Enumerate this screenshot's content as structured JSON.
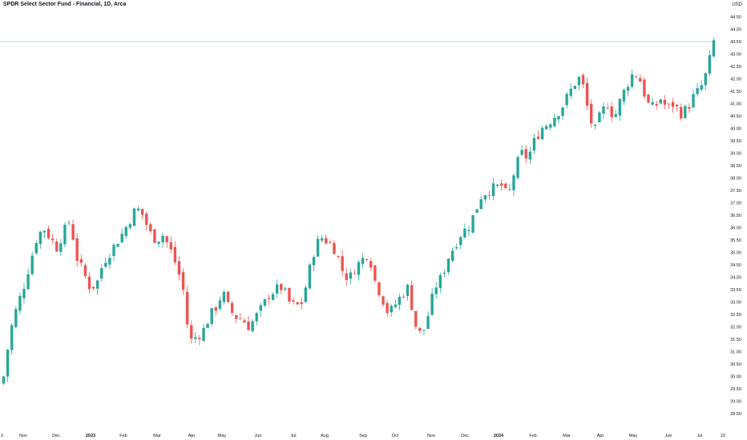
{
  "header": {
    "title": "SPDR Select Sector Fund - Financial, 1D, Arca",
    "currency": "USD"
  },
  "colors": {
    "up": "#26a69a",
    "down": "#ef5350",
    "price_line": "#26a69a",
    "axis_text": "#131722"
  },
  "chart_data": {
    "type": "candlestick",
    "title": "SPDR Select Sector Fund - Financial, 1D, Arca",
    "ylabel": "USD",
    "ylim": [
      28.3,
      45.0
    ],
    "grid": false,
    "y_ticks": [
      "44.50",
      "44.00",
      "43.50",
      "43.00",
      "42.50",
      "42.00",
      "41.50",
      "41.00",
      "40.50",
      "40.00",
      "39.50",
      "39.00",
      "38.50",
      "38.00",
      "37.50",
      "37.00",
      "36.50",
      "36.00",
      "35.50",
      "35.00",
      "34.50",
      "34.00",
      "33.50",
      "33.00",
      "32.50",
      "32.00",
      "31.50",
      "31.00",
      "30.50",
      "30.00",
      "29.50",
      "29.00",
      "28.50"
    ],
    "x_ticks": [
      "2",
      "Nov",
      "Dec",
      "2023",
      "Feb",
      "Mar",
      "Apr",
      "May",
      "Jun",
      "Jul",
      "Aug",
      "Sep",
      "Oct",
      "Nov",
      "Dec",
      "2024",
      "Feb",
      "Mar",
      "Apr",
      "May",
      "Jun",
      "Jul",
      "22"
    ],
    "x_tick_bold": [
      "2023",
      "2024"
    ],
    "last_price": 43.5,
    "series_path_closes": [
      30.0,
      31.8,
      32.8,
      33.6,
      34.6,
      35.6,
      36.0,
      35.6,
      35.2,
      35.8,
      36.3,
      34.8,
      34.2,
      33.6,
      33.7,
      34.6,
      35.0,
      35.4,
      35.8,
      36.3,
      36.8,
      36.5,
      35.8,
      35.5,
      35.7,
      35.2,
      34.5,
      33.6,
      31.4,
      31.6,
      31.8,
      32.4,
      32.8,
      33.4,
      32.7,
      32.4,
      32.3,
      32.0,
      32.4,
      32.8,
      33.3,
      33.5,
      33.6,
      33.0,
      32.8,
      33.0,
      34.2,
      35.3,
      35.6,
      35.4,
      35.1,
      34.3,
      33.9,
      34.4,
      34.7,
      35.0,
      33.8,
      33.2,
      32.5,
      32.9,
      33.3,
      33.6,
      32.1,
      31.6,
      32.5,
      33.6,
      34.0,
      34.8,
      35.3,
      35.8,
      36.0,
      36.6,
      37.3,
      37.5,
      37.6,
      37.7,
      37.2,
      38.3,
      39.0,
      38.8,
      39.5,
      40.0,
      40.2,
      40.5,
      40.8,
      41.3,
      41.8,
      42.1,
      40.8,
      39.8,
      40.6,
      41.0,
      40.4,
      41.2,
      41.8,
      42.3,
      41.9,
      41.0,
      40.8,
      41.2,
      40.8,
      41.0,
      40.6,
      40.8,
      41.3,
      41.6,
      42.3,
      43.5
    ]
  }
}
